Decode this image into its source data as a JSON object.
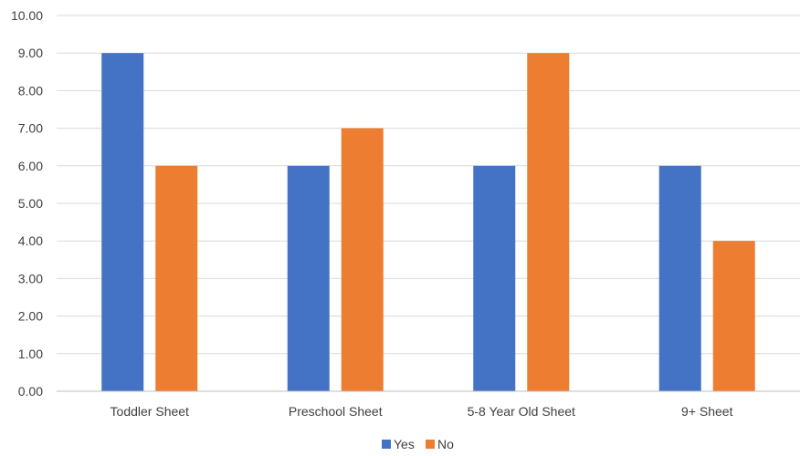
{
  "chart_data": {
    "type": "bar",
    "title": "",
    "xlabel": "",
    "ylabel": "",
    "categories": [
      "Toddler Sheet",
      "Preschool Sheet",
      "5-8 Year Old Sheet",
      "9+ Sheet"
    ],
    "series": [
      {
        "name": "Yes",
        "color": "#4472C4",
        "values": [
          9,
          6,
          6,
          6
        ]
      },
      {
        "name": "No",
        "color": "#ED7D31",
        "values": [
          6,
          7,
          9,
          4
        ]
      }
    ],
    "ylim": [
      0,
      10
    ],
    "yticks": [
      "0.00",
      "1.00",
      "2.00",
      "3.00",
      "4.00",
      "5.00",
      "6.00",
      "7.00",
      "8.00",
      "9.00",
      "10.00"
    ],
    "grid": true,
    "legend_position": "bottom"
  }
}
